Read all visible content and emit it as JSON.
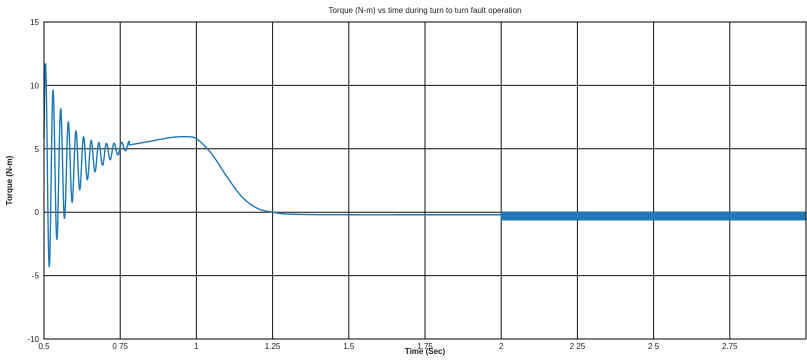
{
  "chart_data": {
    "type": "line",
    "title": "Torque (N-m) vs time during turn to turn fault operation",
    "xlabel": "Time (Sec)",
    "ylabel": "Torque (N-m)",
    "xlim": [
      0.5,
      3.0
    ],
    "ylim": [
      -10,
      15
    ],
    "x_ticks": [
      0.5,
      0.75,
      1,
      1.25,
      1.5,
      1.75,
      2,
      2.25,
      2.5,
      2.75
    ],
    "x_tick_labels": [
      "0.5",
      "0 75",
      "1",
      "1.25",
      "1.5",
      "1.75",
      "2",
      "2 25",
      "2 5",
      "2.75"
    ],
    "y_ticks": [
      -10,
      -5,
      0,
      5,
      10,
      15
    ],
    "y_tick_labels": [
      "-10",
      "-5",
      "0",
      "5",
      "10",
      "15"
    ],
    "grid": true,
    "series": [
      {
        "color": "#1f77b4",
        "components": [
          {
            "kind": "damped_oscillation",
            "x_start": 0.5,
            "x_end": 0.78,
            "center_start": 3.0,
            "center_end": 5.3,
            "amplitude_start": 9.2,
            "amplitude_end": 0.3,
            "cycle_peaks_x": [
              0.505,
              0.53,
              0.555,
              0.58,
              0.605,
              0.63,
              0.655,
              0.68,
              0.705,
              0.73,
              0.755
            ]
          },
          {
            "kind": "curve",
            "x": [
              0.78,
              0.85,
              0.92,
              0.97,
              1.0,
              1.05,
              1.1,
              1.15,
              1.2,
              1.25,
              1.3,
              1.5,
              1.75,
              2.0
            ],
            "y": [
              5.3,
              5.6,
              5.9,
              5.95,
              5.8,
              4.6,
              2.8,
              1.2,
              0.3,
              0.0,
              -0.15,
              -0.2,
              -0.2,
              -0.2
            ]
          },
          {
            "kind": "ripple_band",
            "x_start": 2.0,
            "x_end": 3.0,
            "center": -0.3,
            "amplitude": 0.3
          }
        ]
      }
    ]
  }
}
